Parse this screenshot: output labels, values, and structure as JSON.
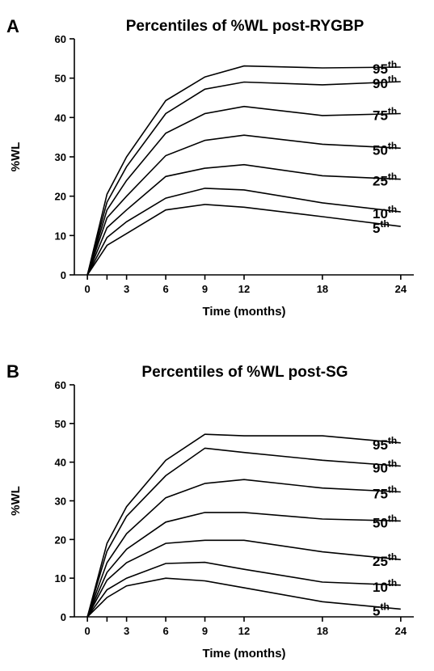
{
  "chart_data": [
    {
      "type": "line",
      "panel": "A",
      "title": "Percentiles of %WL post-RYGBP",
      "xlabel": "Time (months)",
      "ylabel": "%WL",
      "xticks": [
        "0",
        "3",
        "6",
        "9",
        "12",
        "18",
        "24"
      ],
      "yticks": [
        "0",
        "10",
        "20",
        "30",
        "40",
        "50",
        "60"
      ],
      "xlim": [
        -1,
        25
      ],
      "ylim": [
        0,
        60
      ],
      "x": [
        0,
        1.5,
        3,
        6,
        9,
        12,
        18,
        24
      ],
      "series": [
        {
          "name": "95",
          "values": [
            0,
            20.5,
            30,
            44.3,
            50.3,
            53.1,
            52.6,
            52.8
          ]
        },
        {
          "name": "90",
          "values": [
            0,
            18.5,
            27.5,
            41,
            47.2,
            49,
            48.3,
            49.1
          ]
        },
        {
          "name": "75",
          "values": [
            0,
            16.5,
            24,
            36,
            41,
            42.8,
            40.5,
            41
          ]
        },
        {
          "name": "50",
          "values": [
            0,
            14.5,
            20,
            30.3,
            34.2,
            35.5,
            33.2,
            32.2
          ]
        },
        {
          "name": "25",
          "values": [
            0,
            12,
            16.5,
            25,
            27.1,
            28,
            25.2,
            24.3
          ]
        },
        {
          "name": "10",
          "values": [
            0,
            9.5,
            13.5,
            19.5,
            22,
            21.6,
            18.3,
            16
          ]
        },
        {
          "name": "5",
          "values": [
            0,
            7.5,
            10.5,
            16.5,
            17.9,
            17.2,
            14.8,
            12.3
          ]
        }
      ],
      "label_suffix": "th"
    },
    {
      "type": "line",
      "panel": "B",
      "title": "Percentiles of %WL post-SG",
      "xlabel": "Time (months)",
      "ylabel": "%WL",
      "xticks": [
        "0",
        "3",
        "6",
        "9",
        "12",
        "18",
        "24"
      ],
      "yticks": [
        "0",
        "10",
        "20",
        "30",
        "40",
        "50",
        "60"
      ],
      "xlim": [
        -1,
        25
      ],
      "ylim": [
        0,
        60
      ],
      "x": [
        0,
        1.5,
        3,
        6,
        9,
        12,
        18,
        24
      ],
      "series": [
        {
          "name": "95",
          "values": [
            0,
            19,
            28.5,
            40.5,
            47.2,
            46.8,
            46.8,
            45
          ]
        },
        {
          "name": "90",
          "values": [
            0,
            17,
            26,
            36.5,
            43.6,
            42.5,
            40.5,
            39
          ]
        },
        {
          "name": "75",
          "values": [
            0,
            14,
            21.5,
            30.8,
            34.5,
            35.5,
            33.3,
            32.3
          ]
        },
        {
          "name": "50",
          "values": [
            0,
            11.5,
            17.5,
            24.5,
            27,
            27,
            25.3,
            24.8
          ]
        },
        {
          "name": "25",
          "values": [
            0,
            9.5,
            14,
            19,
            19.8,
            19.8,
            16.8,
            14.8
          ]
        },
        {
          "name": "10",
          "values": [
            0,
            7,
            10,
            13.8,
            14.1,
            12.3,
            9,
            8.2
          ]
        },
        {
          "name": "5",
          "values": [
            0,
            5,
            8,
            10,
            9.3,
            7.5,
            3.9,
            2
          ]
        }
      ],
      "label_suffix": "th"
    }
  ]
}
